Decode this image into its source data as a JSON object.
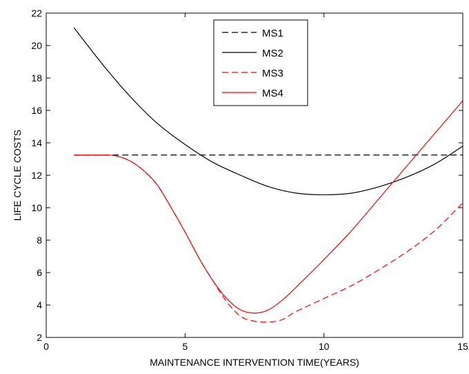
{
  "chart_data": {
    "type": "line",
    "title": "",
    "xlabel": "MAINTENANCE INTERVENTION TIME(YEARS)",
    "ylabel": "LIFE CYCLE COSTS",
    "xlim": [
      0,
      15
    ],
    "ylim": [
      2,
      22
    ],
    "xticks": [
      0,
      5,
      10,
      15
    ],
    "yticks": [
      2,
      4,
      6,
      8,
      10,
      12,
      14,
      16,
      18,
      20,
      22
    ],
    "grid": false,
    "legend_position": "top-center",
    "series": [
      {
        "name": "MS1",
        "color": "#000000",
        "dash": "dashed",
        "x": [
          1,
          15
        ],
        "y": [
          13.25,
          13.25
        ]
      },
      {
        "name": "MS2",
        "color": "#000000",
        "dash": "solid",
        "x": [
          1,
          2,
          3,
          4,
          5,
          6,
          7,
          8,
          9,
          10,
          11,
          12,
          13,
          14,
          15
        ],
        "y": [
          21.1,
          18.9,
          16.9,
          15.2,
          13.9,
          12.8,
          12.0,
          11.3,
          10.9,
          10.8,
          10.9,
          11.3,
          11.9,
          12.7,
          13.8
        ]
      },
      {
        "name": "MS3",
        "color": "#ff0000",
        "dash": "dashed",
        "x": [
          1,
          2,
          2.5,
          3,
          3.5,
          4,
          4.5,
          5,
          5.5,
          6,
          6.5,
          7,
          7.5,
          8,
          8.5,
          9,
          10,
          11,
          12,
          13,
          14,
          15
        ],
        "y": [
          13.25,
          13.25,
          13.2,
          12.9,
          12.3,
          11.4,
          10.0,
          8.5,
          6.9,
          5.5,
          4.2,
          3.3,
          3.0,
          2.95,
          3.1,
          3.6,
          4.4,
          5.2,
          6.2,
          7.3,
          8.6,
          10.3
        ]
      },
      {
        "name": "MS4",
        "color": "#ff0000",
        "dash": "solid",
        "x": [
          1,
          2,
          2.5,
          3,
          3.5,
          4,
          4.5,
          5,
          5.5,
          6,
          6.5,
          7,
          7.5,
          8,
          8.5,
          9,
          10,
          11,
          12,
          13,
          14,
          15
        ],
        "y": [
          13.25,
          13.25,
          13.2,
          12.9,
          12.3,
          11.4,
          10.0,
          8.5,
          6.9,
          5.5,
          4.4,
          3.7,
          3.5,
          3.7,
          4.3,
          5.1,
          6.8,
          8.6,
          10.6,
          12.6,
          14.6,
          16.6
        ]
      }
    ]
  }
}
